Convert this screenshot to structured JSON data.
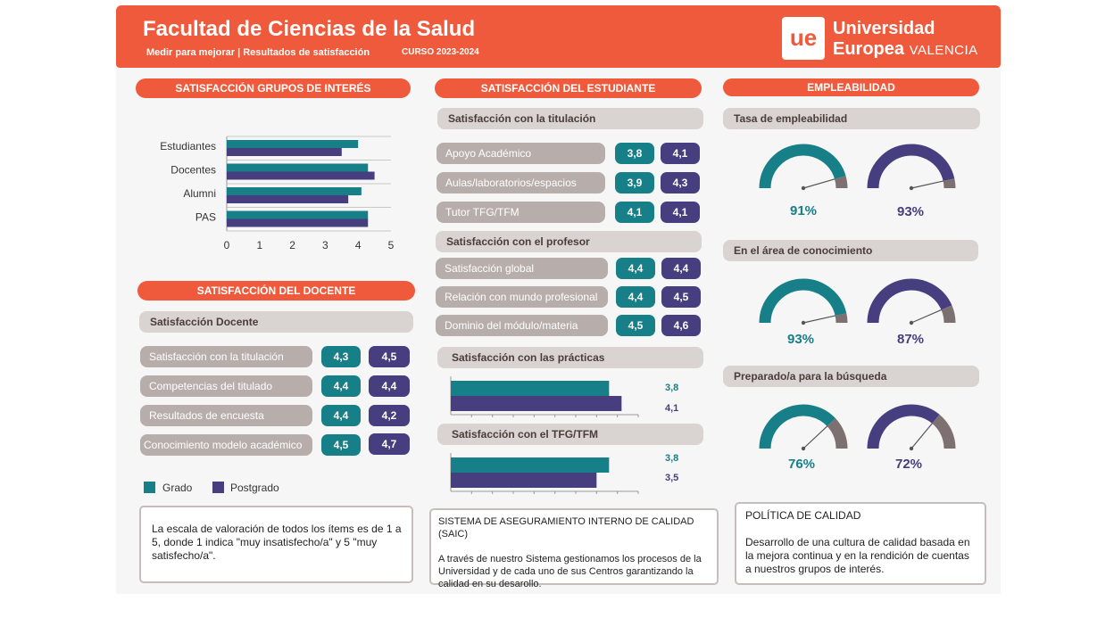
{
  "header": {
    "title": "Facultad de Ciencias de la Salud",
    "subtitle": "Medir para mejorar | Resultados de satisfacción",
    "course": "CURSO 2023-2024",
    "logo_mark": "ue",
    "logo_line1": "Universidad",
    "logo_line2": "Europea",
    "logo_line3": "VALENCIA"
  },
  "colors": {
    "accent": "#ef5a3c",
    "grado": "#167f88",
    "postgrado": "#463e7e",
    "gray": "#b7adab"
  },
  "interest": {
    "pill": "SATISFACCIÓN GRUPOS DE INTERÉS",
    "chart_data": {
      "type": "bar",
      "orientation": "horizontal",
      "categories": [
        "Estudiantes",
        "Docentes",
        "Alumni",
        "PAS"
      ],
      "series": [
        {
          "name": "Grado",
          "values": [
            4.0,
            4.3,
            4.1,
            4.3
          ]
        },
        {
          "name": "Postgrado",
          "values": [
            3.5,
            4.5,
            3.7,
            4.3
          ]
        }
      ],
      "xticks": [
        "0",
        "1",
        "2",
        "3",
        "4",
        "5"
      ],
      "xlim": [
        0,
        5
      ]
    }
  },
  "docente": {
    "pill": "SATISFACCIÓN DEL DOCENTE",
    "section": "Satisfacción Docente",
    "rows": [
      {
        "label": "Satisfacción con la titulación",
        "grado": "4,3",
        "postgrado": "4,5"
      },
      {
        "label": "Competencias del titulado",
        "grado": "4,4",
        "postgrado": "4,4"
      },
      {
        "label": "Resultados de encuesta",
        "grado": "4,4",
        "postgrado": "4,2"
      },
      {
        "label": "Conocimiento modelo académico",
        "grado": "4,5",
        "postgrado": "4,7"
      }
    ]
  },
  "legend": {
    "grado": "Grado",
    "postgrado": "Postgrado"
  },
  "scale_note": "La escala de valoración de todos los ítems es de 1 a 5, donde 1 indica \"muy insatisfecho/a\" y 5 \"muy satisfecho/a\".",
  "estudiante": {
    "pill": "SATISFACCIÓN DEL ESTUDIANTE",
    "titulacion": {
      "section": "Satisfacción con la titulación",
      "rows": [
        {
          "label": "Apoyo Académico",
          "grado": "3,8",
          "postgrado": "4,1"
        },
        {
          "label": "Aulas/laboratorios/espacios",
          "grado": "3,9",
          "postgrado": "4,3"
        },
        {
          "label": "Tutor TFG/TFM",
          "grado": "4,1",
          "postgrado": "4,1"
        }
      ]
    },
    "profesor": {
      "section": "Satisfacción con el profesor",
      "rows": [
        {
          "label": "Satisfacción global",
          "grado": "4,4",
          "postgrado": "4,4"
        },
        {
          "label": "Relación con mundo profesional",
          "grado": "4,4",
          "postgrado": "4,5"
        },
        {
          "label": "Dominio del módulo/materia",
          "grado": "4,5",
          "postgrado": "4,6"
        }
      ]
    },
    "practicas": {
      "section": "Satisfacción con las prácticas",
      "grado": 3.8,
      "postgrado": 4.1,
      "grado_label": "3,8",
      "postgrado_label": "4,1"
    },
    "tfg": {
      "section": "Satisfacción con el TFG/TFM",
      "grado": 3.8,
      "postgrado": 3.5,
      "grado_label": "3,8",
      "postgrado_label": "3,5"
    }
  },
  "saic": {
    "title": "SISTEMA DE ASEGURAMIENTO INTERNO DE CALIDAD (SAIC)",
    "body": "A través de nuestro Sistema gestionamos los procesos de la Universidad y de cada uno de sus Centros garantizando la calidad en su desarollo."
  },
  "empleabilidad": {
    "pill": "EMPLEABILIDAD",
    "groups": [
      {
        "section": "Tasa de empleabilidad",
        "grado": 91,
        "postgrado": 93,
        "grado_label": "91%",
        "postgrado_label": "93%"
      },
      {
        "section": "En el área de conocimiento",
        "grado": 93,
        "postgrado": 87,
        "grado_label": "93%",
        "postgrado_label": "87%"
      },
      {
        "section": "Preparado/a para la búsqueda",
        "grado": 76,
        "postgrado": 72,
        "grado_label": "76%",
        "postgrado_label": "72%"
      }
    ]
  },
  "politica": {
    "title": "POLÍTICA DE CALIDAD",
    "body": "Desarrollo de una cultura de calidad basada en la mejora continua y en la rendición de cuentas a nuestros grupos de interés."
  }
}
